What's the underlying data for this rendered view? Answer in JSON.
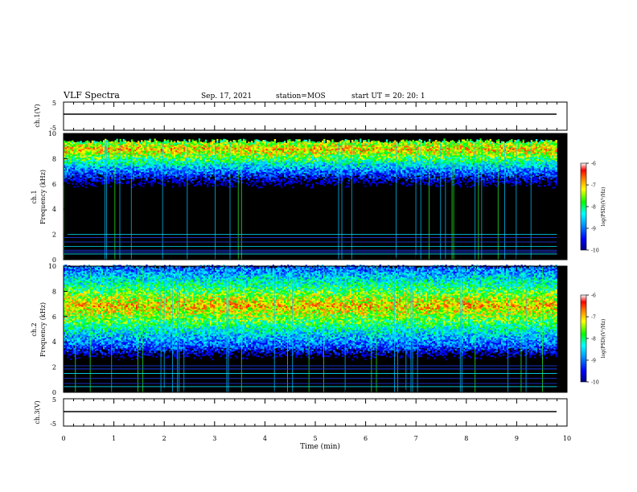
{
  "header": {
    "title": "VLF Spectra",
    "date": "Sep. 17, 2021",
    "station": "station=MOS",
    "start": "start UT =  20: 20: 1"
  },
  "chart_data": [
    {
      "type": "line",
      "id": "ch1-waveform",
      "ylabel": "ch.1(V)",
      "ylim": [
        -5,
        5
      ],
      "yticks": [
        "5",
        "-5"
      ],
      "x": [
        0,
        9.8
      ],
      "series": [
        {
          "values": [
            0,
            0
          ]
        }
      ],
      "xlim": [
        0,
        10
      ]
    },
    {
      "type": "heatmap",
      "id": "ch1-spectrogram",
      "ylabel": "ch.1\nFrequency (kHz)",
      "ylabel_lines": [
        "ch.1",
        "Frequency (kHz)"
      ],
      "ylim": [
        0,
        10
      ],
      "yticks": [
        "0",
        "2",
        "4",
        "6",
        "8",
        "10"
      ],
      "xlim": [
        0,
        9.8
      ],
      "band_center_khz": 8.7,
      "band_top_khz": 9.2,
      "activity_floor_khz": 5.5,
      "hum_lines_khz": [
        0.45,
        0.6,
        0.75,
        1.05,
        1.4,
        1.75,
        2.0
      ],
      "colorbar": {
        "label": "log(PSD)(V²/Hz)",
        "range": [
          -10,
          -6
        ],
        "ticks": [
          "-6",
          "-7",
          "-8",
          "-9",
          "-10"
        ]
      }
    },
    {
      "type": "heatmap",
      "id": "ch2-spectrogram",
      "ylabel": "ch.2\nFrequency (kHz)",
      "ylabel_lines": [
        "ch.2",
        "Frequency (kHz)"
      ],
      "ylim": [
        0,
        10
      ],
      "yticks": [
        "0",
        "2",
        "4",
        "6",
        "8",
        "10"
      ],
      "xlim": [
        0,
        9.8
      ],
      "band_center_khz": 6.8,
      "band_top_khz": 9.8,
      "activity_floor_khz": 3.5,
      "hum_lines_khz": [
        0.45,
        0.7,
        1.1,
        1.5,
        1.85,
        2.1
      ],
      "colorbar": {
        "label": "log(PSD)(V²/Hz)",
        "range": [
          -10,
          -6
        ],
        "ticks": [
          "-6",
          "-7",
          "-8",
          "-9",
          "-10"
        ]
      }
    },
    {
      "type": "line",
      "id": "ch3-waveform",
      "ylabel": "ch.3(V)",
      "ylim": [
        -5,
        5
      ],
      "yticks": [
        "5",
        "-5"
      ],
      "x": [
        0,
        9.8
      ],
      "series": [
        {
          "values": [
            0,
            0
          ]
        }
      ],
      "xlim": [
        0,
        10
      ]
    }
  ],
  "xaxis": {
    "label": "Time (min)",
    "ticks": [
      "0",
      "1",
      "2",
      "3",
      "4",
      "5",
      "6",
      "7",
      "8",
      "9",
      "10"
    ],
    "range": [
      0,
      10
    ]
  }
}
